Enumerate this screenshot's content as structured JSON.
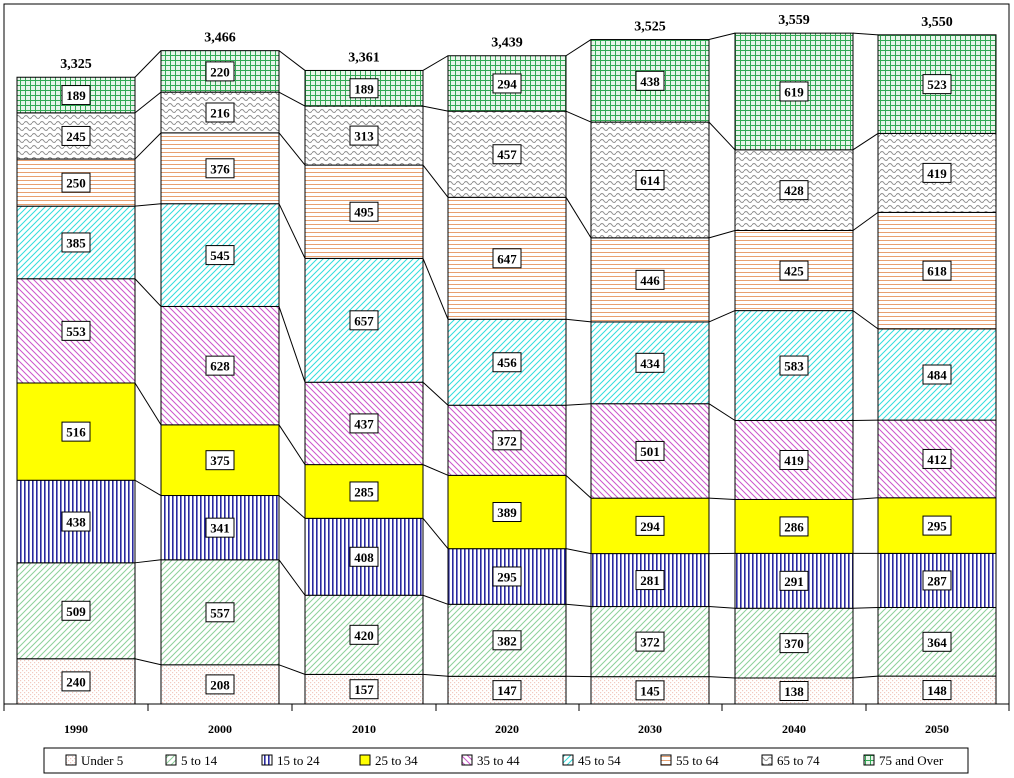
{
  "chart_data": {
    "type": "bar",
    "stacked": true,
    "title": "",
    "xlabel": "",
    "ylabel": "",
    "categories": [
      "1990",
      "2000",
      "2010",
      "2020",
      "2030",
      "2040",
      "2050"
    ],
    "totals": [
      "3,325",
      "3,466",
      "3,361",
      "3,439",
      "3,525",
      "3,559",
      "3,550"
    ],
    "series": [
      {
        "name": "Under 5",
        "color": "#f2c9c0",
        "pattern": "dots",
        "values": [
          240,
          208,
          157,
          147,
          145,
          138,
          148
        ]
      },
      {
        "name": "5 to 14",
        "color": "#8dd19a",
        "pattern": "diag-up",
        "values": [
          509,
          557,
          420,
          382,
          372,
          370,
          364
        ]
      },
      {
        "name": "15 to 24",
        "color": "#2a2aa0",
        "pattern": "vertical",
        "values": [
          438,
          341,
          408,
          295,
          281,
          291,
          287
        ]
      },
      {
        "name": "25 to 34",
        "color": "#ffff00",
        "pattern": "solid",
        "values": [
          516,
          375,
          285,
          389,
          294,
          286,
          295
        ]
      },
      {
        "name": "35 to 44",
        "color": "#cc55cc",
        "pattern": "diag-down",
        "values": [
          553,
          628,
          437,
          372,
          501,
          419,
          412
        ]
      },
      {
        "name": "45 to 54",
        "color": "#33dddd",
        "pattern": "diag-cross",
        "values": [
          385,
          545,
          657,
          456,
          434,
          583,
          484
        ]
      },
      {
        "name": "55 to 64",
        "color": "#e8a070",
        "pattern": "horizontal",
        "values": [
          250,
          376,
          495,
          647,
          446,
          425,
          618
        ]
      },
      {
        "name": "65 to 74",
        "color": "#909090",
        "pattern": "wave",
        "values": [
          245,
          216,
          313,
          457,
          614,
          428,
          419
        ]
      },
      {
        "name": "75 and Over",
        "color": "#33aa55",
        "pattern": "grid",
        "values": [
          189,
          220,
          189,
          294,
          438,
          619,
          523
        ]
      }
    ],
    "legend_position": "bottom",
    "grid": false
  }
}
